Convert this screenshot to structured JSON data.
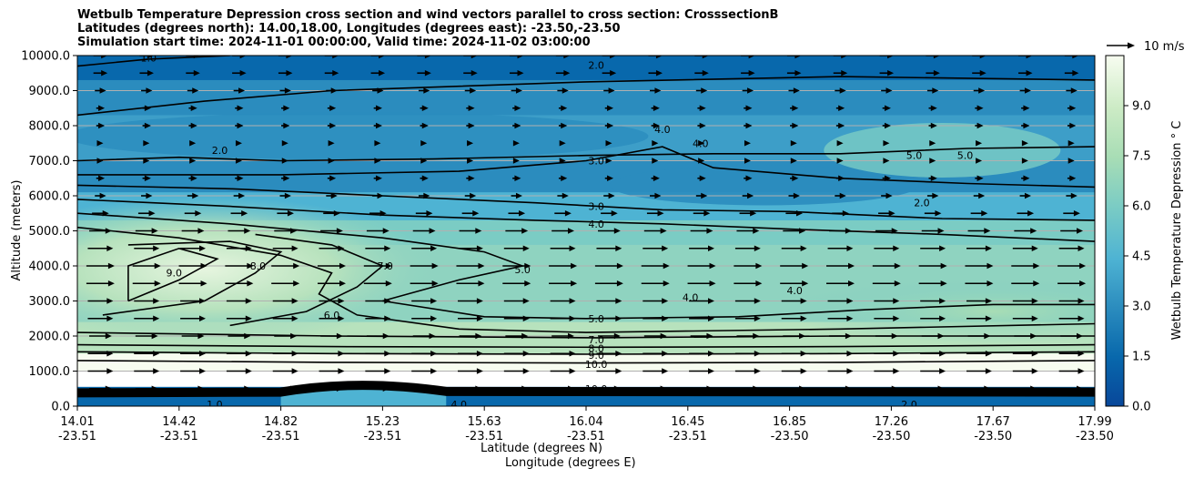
{
  "chart_data": {
    "type": "contour",
    "title_lines": [
      "Wetbulb Temperature Depression cross section and wind vectors parallel to cross section: CrosssectionB",
      "Latitudes (degrees north): 14.00,18.00, Longitudes (degrees east): -23.50,-23.50",
      "Simulation start time: 2024-11-01 00:00:00, Valid time: 2024-11-02 03:00:00"
    ],
    "xlabel_lines": [
      "Latitude (degrees N)",
      "Longitude (degrees E)"
    ],
    "ylabel": "Altitude (meters)",
    "ylim": [
      0,
      10000
    ],
    "y_ticks": [
      "0.0",
      "1000.0",
      "2000.0",
      "3000.0",
      "4000.0",
      "5000.0",
      "6000.0",
      "7000.0",
      "8000.0",
      "9000.0",
      "10000.0"
    ],
    "x_ticks": [
      {
        "lat": "14.01",
        "lon": "-23.51"
      },
      {
        "lat": "14.42",
        "lon": "-23.51"
      },
      {
        "lat": "14.82",
        "lon": "-23.51"
      },
      {
        "lat": "15.23",
        "lon": "-23.51"
      },
      {
        "lat": "15.63",
        "lon": "-23.51"
      },
      {
        "lat": "16.04",
        "lon": "-23.51"
      },
      {
        "lat": "16.45",
        "lon": "-23.51"
      },
      {
        "lat": "16.85",
        "lon": "-23.50"
      },
      {
        "lat": "17.26",
        "lon": "-23.50"
      },
      {
        "lat": "17.67",
        "lon": "-23.50"
      },
      {
        "lat": "17.99",
        "lon": "-23.50"
      }
    ],
    "colorbar": {
      "label": "Wetbulb Temperature Depression $^\\circ$ C",
      "label_display": "Wetbulb Temperature Depression ° C",
      "range": [
        0,
        10.5
      ],
      "ticks": [
        "0.0",
        "1.5",
        "3.0",
        "4.5",
        "6.0",
        "7.5",
        "9.0"
      ],
      "cmap": "GnBu_r"
    },
    "wind_key": {
      "label": "10 m/s",
      "speed": 10
    },
    "contour_labels": [
      {
        "text": "1.0",
        "x": 14.28,
        "alt": 9930
      },
      {
        "text": "2.0",
        "x": 16.04,
        "alt": 9730
      },
      {
        "text": "2.0",
        "x": 14.56,
        "alt": 7300
      },
      {
        "text": "4.0",
        "x": 16.3,
        "alt": 7900
      },
      {
        "text": "4.0",
        "x": 16.45,
        "alt": 7500
      },
      {
        "text": "5.0",
        "x": 17.29,
        "alt": 7150
      },
      {
        "text": "5.0",
        "x": 17.49,
        "alt": 7150
      },
      {
        "text": "3.0",
        "x": 16.04,
        "alt": 7000
      },
      {
        "text": "3.0",
        "x": 16.04,
        "alt": 5700
      },
      {
        "text": "4.0",
        "x": 16.04,
        "alt": 5200
      },
      {
        "text": "2.0",
        "x": 17.32,
        "alt": 5800
      },
      {
        "text": "9.0",
        "x": 14.38,
        "alt": 3800
      },
      {
        "text": "8.0",
        "x": 14.71,
        "alt": 4000
      },
      {
        "text": "7.0",
        "x": 15.21,
        "alt": 4000
      },
      {
        "text": "5.0",
        "x": 15.75,
        "alt": 3900
      },
      {
        "text": "4.0",
        "x": 16.41,
        "alt": 3100
      },
      {
        "text": "4.0",
        "x": 16.82,
        "alt": 3300
      },
      {
        "text": "6.0",
        "x": 15.0,
        "alt": 2600
      },
      {
        "text": "5.0",
        "x": 16.04,
        "alt": 2500
      },
      {
        "text": "7.0",
        "x": 16.04,
        "alt": 1900
      },
      {
        "text": "8.0",
        "x": 16.04,
        "alt": 1650
      },
      {
        "text": "9.0",
        "x": 16.04,
        "alt": 1450
      },
      {
        "text": "10.0",
        "x": 16.04,
        "alt": 1200
      },
      {
        "text": "10.0",
        "x": 16.04,
        "alt": 500
      },
      {
        "text": "1.0",
        "x": 14.54,
        "alt": 50
      },
      {
        "text": "4.0",
        "x": 15.5,
        "alt": 50
      },
      {
        "text": "2.0",
        "x": 17.27,
        "alt": 50
      }
    ],
    "series": [
      {
        "name": "contour_2_top",
        "level": "2.0",
        "points": [
          [
            14.0,
            8300
          ],
          [
            14.5,
            8700
          ],
          [
            15.0,
            9000
          ],
          [
            16.0,
            9250
          ],
          [
            17.0,
            9400
          ],
          [
            18.0,
            9300
          ]
        ]
      },
      {
        "name": "contour_1",
        "level": "1.0",
        "points": [
          [
            14.0,
            9700
          ],
          [
            14.28,
            9900
          ],
          [
            14.6,
            10000
          ]
        ]
      },
      {
        "name": "contour_2_mid",
        "level": "2.0",
        "points": [
          [
            14.0,
            7000
          ],
          [
            14.4,
            7100
          ],
          [
            14.8,
            7000
          ],
          [
            15.4,
            7050
          ],
          [
            16.0,
            7150
          ],
          [
            16.5,
            7200
          ],
          [
            17.0,
            7200
          ],
          [
            17.5,
            7350
          ],
          [
            18.0,
            7400
          ]
        ]
      },
      {
        "name": "contour_3_upper",
        "level": "3.0",
        "points": [
          [
            14.0,
            6600
          ],
          [
            14.8,
            6600
          ],
          [
            15.5,
            6700
          ],
          [
            16.0,
            7000
          ],
          [
            16.3,
            7400
          ],
          [
            16.5,
            6800
          ],
          [
            17.0,
            6500
          ],
          [
            17.5,
            6350
          ],
          [
            18.0,
            6250
          ]
        ]
      },
      {
        "name": "contour_3",
        "level": "3.0",
        "points": [
          [
            14.0,
            6300
          ],
          [
            14.6,
            6200
          ],
          [
            15.2,
            6000
          ],
          [
            15.8,
            5800
          ],
          [
            16.3,
            5600
          ],
          [
            16.8,
            5550
          ],
          [
            17.4,
            5350
          ],
          [
            18.0,
            5300
          ]
        ]
      },
      {
        "name": "contour_4",
        "level": "4.0",
        "points": [
          [
            14.0,
            5900
          ],
          [
            14.6,
            5700
          ],
          [
            15.2,
            5450
          ],
          [
            15.8,
            5300
          ],
          [
            16.3,
            5200
          ],
          [
            16.8,
            5050
          ],
          [
            17.4,
            4900
          ],
          [
            18.0,
            4700
          ]
        ]
      },
      {
        "name": "contour_5",
        "level": "5.0",
        "points": [
          [
            14.0,
            5500
          ],
          [
            14.6,
            5200
          ],
          [
            15.2,
            4800
          ],
          [
            15.6,
            4400
          ],
          [
            15.75,
            4000
          ],
          [
            15.5,
            3600
          ],
          [
            15.2,
            3000
          ],
          [
            15.6,
            2550
          ],
          [
            16.0,
            2500
          ],
          [
            16.6,
            2550
          ],
          [
            17.1,
            2750
          ],
          [
            17.6,
            2900
          ],
          [
            18.0,
            2900
          ]
        ]
      },
      {
        "name": "contour_6",
        "level": "6.0",
        "points": [
          [
            14.0,
            5100
          ],
          [
            14.4,
            4800
          ],
          [
            14.8,
            4300
          ],
          [
            15.0,
            3800
          ],
          [
            14.95,
            3200
          ],
          [
            15.1,
            2600
          ],
          [
            15.5,
            2200
          ],
          [
            16.0,
            2100
          ],
          [
            17.0,
            2200
          ],
          [
            18.0,
            2350
          ]
        ]
      },
      {
        "name": "contour_7",
        "level": "7.0",
        "points": [
          [
            14.0,
            2100
          ],
          [
            15.0,
            2000
          ],
          [
            16.04,
            1950
          ],
          [
            17.0,
            2000
          ],
          [
            18.0,
            2000
          ]
        ]
      },
      {
        "name": "contour_8",
        "level": "8.0",
        "points": [
          [
            14.0,
            1750
          ],
          [
            15.0,
            1700
          ],
          [
            16.04,
            1680
          ],
          [
            17.0,
            1700
          ],
          [
            18.0,
            1750
          ]
        ]
      },
      {
        "name": "contour_9",
        "level": "9.0",
        "points": [
          [
            14.0,
            1550
          ],
          [
            15.0,
            1500
          ],
          [
            16.04,
            1480
          ],
          [
            17.0,
            1500
          ],
          [
            18.0,
            1550
          ]
        ]
      },
      {
        "name": "contour_10",
        "level": "10.0",
        "points": [
          [
            14.0,
            1300
          ],
          [
            15.0,
            1250
          ],
          [
            16.04,
            1230
          ],
          [
            17.0,
            1250
          ],
          [
            18.0,
            1300
          ]
        ]
      },
      {
        "name": "contour_9_core",
        "level": "9.0",
        "points": [
          [
            14.2,
            3000
          ],
          [
            14.4,
            3600
          ],
          [
            14.55,
            4200
          ],
          [
            14.4,
            4500
          ],
          [
            14.2,
            4000
          ],
          [
            14.2,
            3000
          ]
        ]
      },
      {
        "name": "contour_8_core",
        "level": "8.0",
        "points": [
          [
            14.1,
            2600
          ],
          [
            14.5,
            3000
          ],
          [
            14.7,
            3800
          ],
          [
            14.8,
            4400
          ],
          [
            14.6,
            4700
          ],
          [
            14.2,
            4600
          ]
        ]
      },
      {
        "name": "contour_7_core",
        "level": "7.0",
        "points": [
          [
            14.6,
            2300
          ],
          [
            14.9,
            2700
          ],
          [
            15.1,
            3400
          ],
          [
            15.2,
            4000
          ],
          [
            15.0,
            4600
          ],
          [
            14.7,
            4900
          ]
        ]
      }
    ],
    "vectors": {
      "u_by_alt_ms": [
        [
          500,
          8
        ],
        [
          1000,
          9
        ],
        [
          1500,
          9
        ],
        [
          2000,
          8
        ],
        [
          2500,
          9
        ],
        [
          3000,
          9
        ],
        [
          3500,
          10
        ],
        [
          4000,
          10
        ],
        [
          4500,
          9
        ],
        [
          5000,
          8
        ],
        [
          5500,
          6
        ],
        [
          6000,
          4
        ],
        [
          6500,
          3
        ],
        [
          7000,
          2
        ],
        [
          7500,
          2
        ],
        [
          8000,
          3
        ],
        [
          8500,
          3
        ],
        [
          9000,
          4
        ],
        [
          9500,
          5
        ],
        [
          10000,
          5
        ]
      ]
    }
  }
}
